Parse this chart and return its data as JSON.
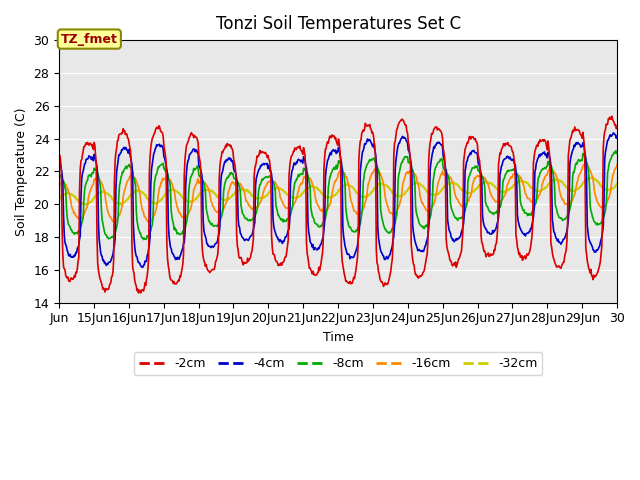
{
  "title": "Tonzi Soil Temperatures Set C",
  "xlabel": "Time",
  "ylabel": "Soil Temperature (C)",
  "ylim": [
    14,
    30
  ],
  "xlim_days": [
    14,
    30
  ],
  "tick_labels": [
    "Jun",
    "15Jun",
    "16Jun",
    "17Jun",
    "18Jun",
    "19Jun",
    "20Jun",
    "21Jun",
    "22Jun",
    "23Jun",
    "24Jun",
    "25Jun",
    "26Jun",
    "27Jun",
    "28Jun",
    "29Jun",
    "30"
  ],
  "tick_positions": [
    14,
    15,
    16,
    17,
    18,
    19,
    20,
    21,
    22,
    23,
    24,
    25,
    26,
    27,
    28,
    29,
    30
  ],
  "line_colors": [
    "#dd0000",
    "#0000cc",
    "#00aa00",
    "#ff8800",
    "#cccc00"
  ],
  "line_labels": [
    "-2cm",
    "-4cm",
    "-8cm",
    "-16cm",
    "-32cm"
  ],
  "line_widths": [
    1.2,
    1.2,
    1.2,
    1.2,
    1.5
  ],
  "background_color": "#e8e8e8",
  "legend_box_text": "TZ_fmet",
  "legend_box_facecolor": "#ffff99",
  "legend_box_edgecolor": "#888800",
  "title_fontsize": 12,
  "yticks": [
    14,
    16,
    18,
    20,
    22,
    24,
    26,
    28,
    30
  ],
  "grid_color": "#ffffff",
  "base_temp": 19.5,
  "warming_rate": 0.06
}
